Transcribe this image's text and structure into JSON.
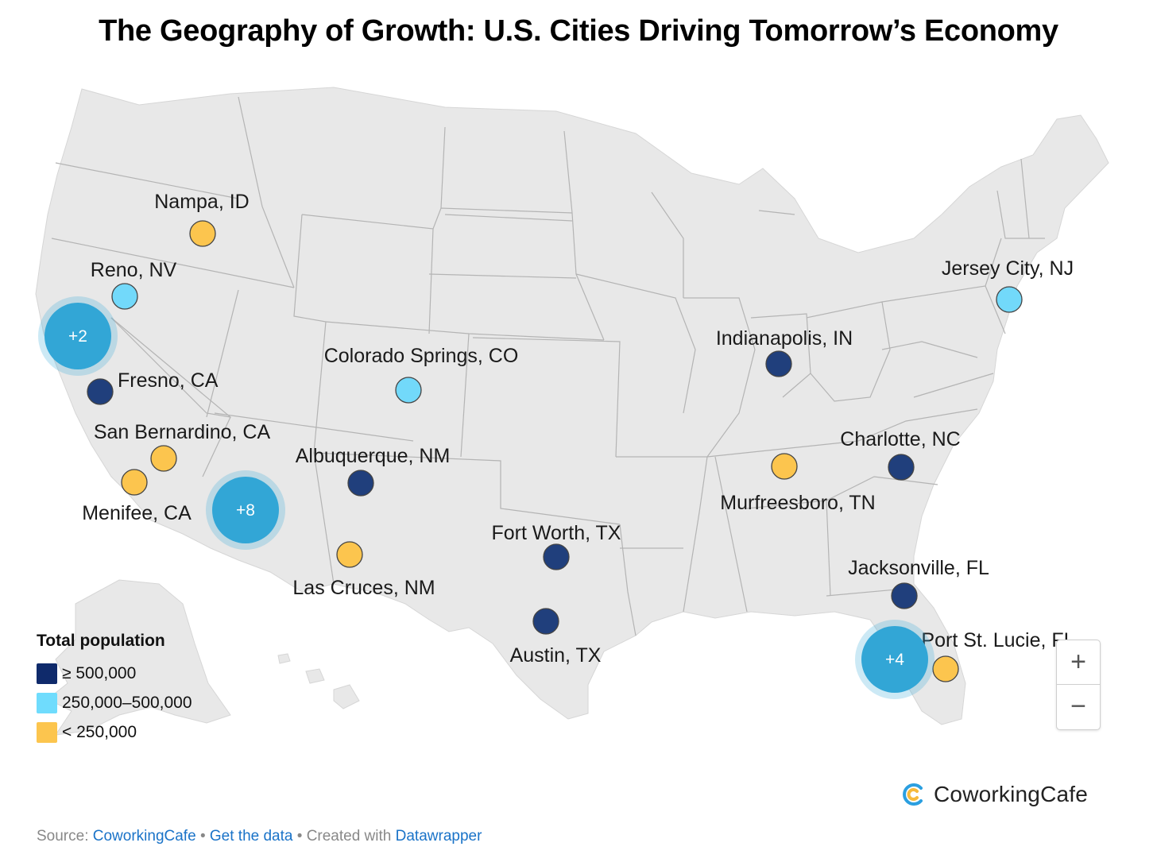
{
  "title": "The Geography of Growth: U.S. Cities Driving Tomorrow’s Economy",
  "colors": {
    "large": "#203f7c",
    "medium": "#72d9fa",
    "small": "#fcc54e",
    "cluster": "#32a6d6",
    "land": "#e8e8e8",
    "border": "#b4b4b4"
  },
  "cities": [
    {
      "name": "Nampa, ID",
      "category": "small"
    },
    {
      "name": "Reno, NV",
      "category": "medium"
    },
    {
      "name": "Fresno, CA",
      "category": "large"
    },
    {
      "name": "San Bernardino, CA",
      "category": "small"
    },
    {
      "name": "Menifee, CA",
      "category": "small"
    },
    {
      "name": "Colorado Springs, CO",
      "category": "medium"
    },
    {
      "name": "Albuquerque, NM",
      "category": "large"
    },
    {
      "name": "Las Cruces, NM",
      "category": "small"
    },
    {
      "name": "Fort Worth, TX",
      "category": "large"
    },
    {
      "name": "Austin, TX",
      "category": "large"
    },
    {
      "name": "Indianapolis, IN",
      "category": "large"
    },
    {
      "name": "Murfreesboro, TN",
      "category": "small"
    },
    {
      "name": "Charlotte, NC",
      "category": "large"
    },
    {
      "name": "Jacksonville, FL",
      "category": "large"
    },
    {
      "name": "Port St. Lucie, FL",
      "category": "small"
    },
    {
      "name": "Jersey City, NJ",
      "category": "medium"
    }
  ],
  "clusters": [
    {
      "label": "+2"
    },
    {
      "label": "+8"
    },
    {
      "label": "+4"
    }
  ],
  "legend": {
    "title": "Total population",
    "items": [
      {
        "label": "≥ 500,000",
        "color": "#203f7c"
      },
      {
        "label": "250,000–500,000",
        "color": "#72d9fa"
      },
      {
        "label": "< 250,000",
        "color": "#fcc54e"
      }
    ]
  },
  "zoom": {
    "plus": "+",
    "minus": "−"
  },
  "brand": {
    "name": "CoworkingCafe"
  },
  "footer": {
    "source_prefix": "Source:",
    "source": "CoworkingCafe",
    "sep1": "•",
    "get_data": "Get the data",
    "sep2": "•",
    "created_prefix": "Created with",
    "created": "Datawrapper"
  }
}
